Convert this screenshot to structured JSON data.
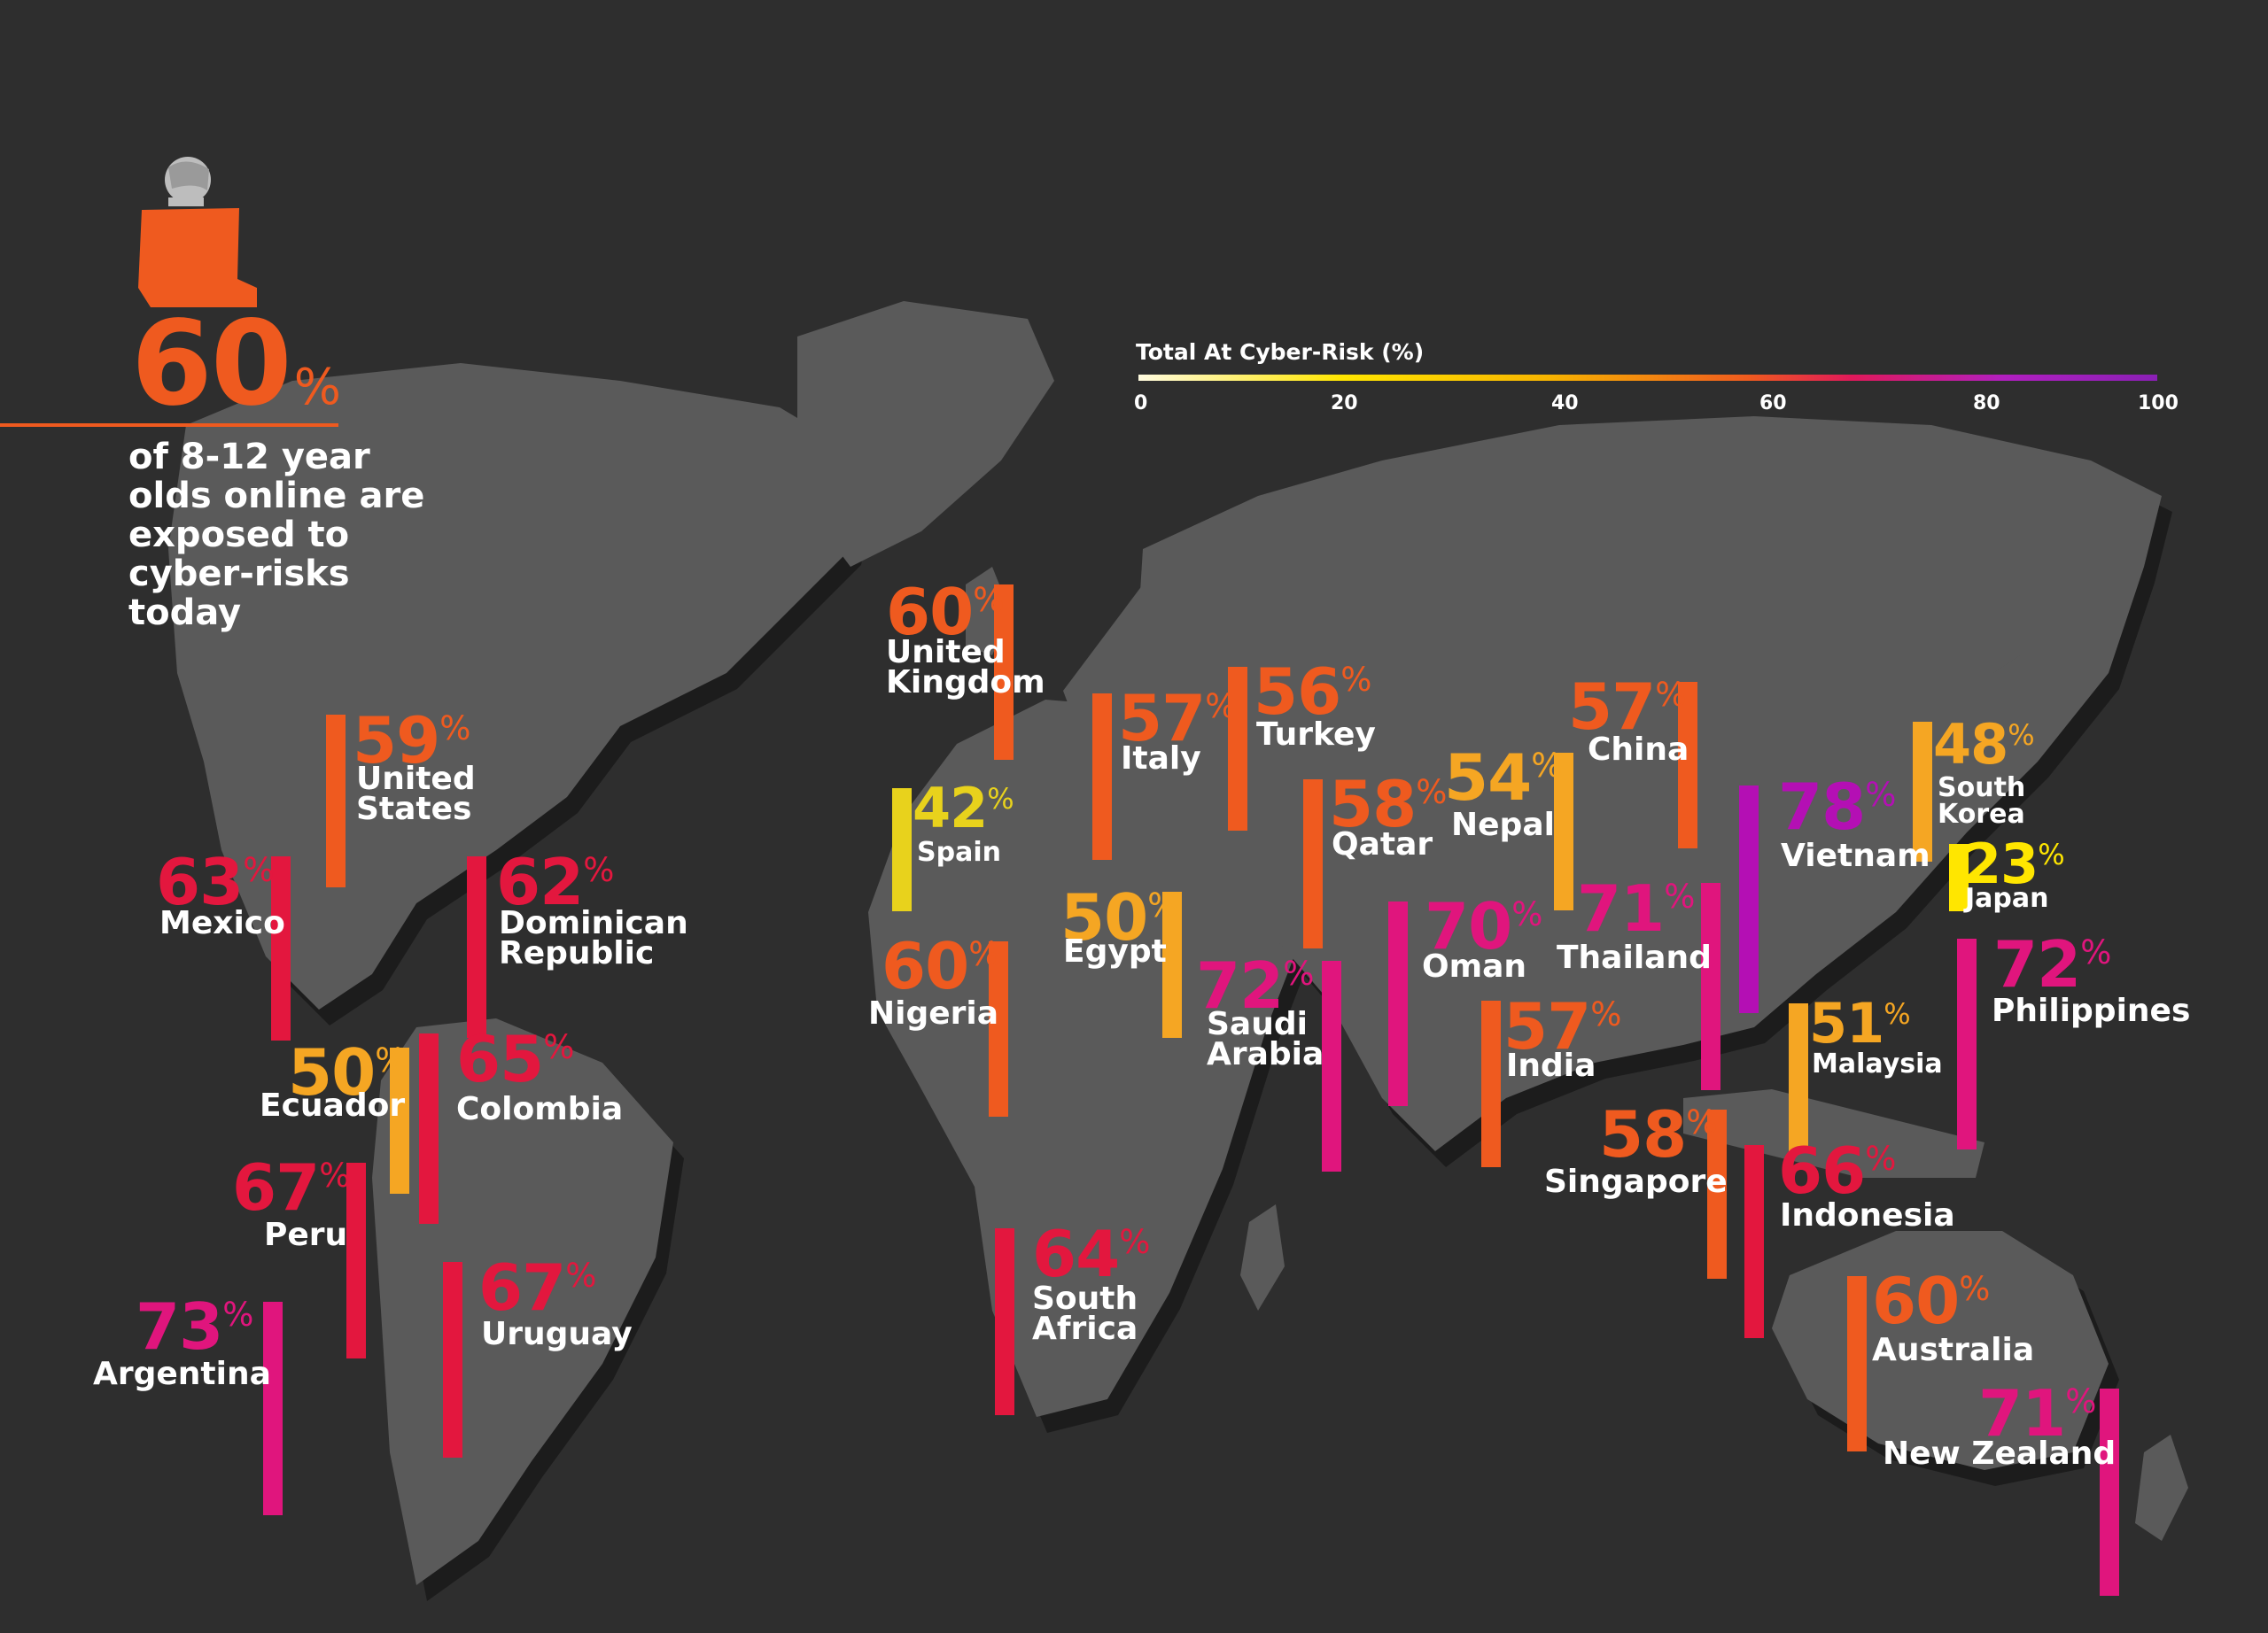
{
  "headline": {
    "value": "60",
    "unit": "%",
    "text": "of 8-12 year olds online are exposed to cyber-risks today",
    "color": "#ef5a1f"
  },
  "legend": {
    "title": "Total At Cyber-Risk (%)",
    "ticks": [
      "0",
      "20",
      "40",
      "60",
      "80",
      "100"
    ]
  },
  "chart_data": {
    "type": "bar",
    "title": "",
    "unit": "%",
    "scale_range": [
      0,
      100
    ],
    "colors": {
      "yellow": "#e8d21c",
      "amber": "#f5a623",
      "orange": "#ef5a1f",
      "red": "#e3173e",
      "magenta": "#e0157d",
      "purple": "#b40fb4"
    },
    "countries": [
      {
        "name": "United\nKingdom",
        "value": 60,
        "color": "#ef5a1f"
      },
      {
        "name": "United\nStates",
        "value": 59,
        "color": "#ef5a1f"
      },
      {
        "name": "Mexico",
        "value": 63,
        "color": "#e3173e"
      },
      {
        "name": "Dominican\nRepublic",
        "value": 62,
        "color": "#e3173e"
      },
      {
        "name": "Ecuador",
        "value": 50,
        "color": "#f5a623"
      },
      {
        "name": "Colombia",
        "value": 65,
        "color": "#e3173e"
      },
      {
        "name": "Peru",
        "value": 67,
        "color": "#e3173e"
      },
      {
        "name": "Uruguay",
        "value": 67,
        "color": "#e3173e"
      },
      {
        "name": "Argentina",
        "value": 73,
        "color": "#e0157d"
      },
      {
        "name": "Spain",
        "value": 42,
        "color": "#e8d21c"
      },
      {
        "name": "Italy",
        "value": 57,
        "color": "#ef5a1f"
      },
      {
        "name": "Turkey",
        "value": 56,
        "color": "#ef5a1f"
      },
      {
        "name": "Qatar",
        "value": 58,
        "color": "#ef5a1f"
      },
      {
        "name": "Nepal",
        "value": 54,
        "color": "#f5a623"
      },
      {
        "name": "China",
        "value": 57,
        "color": "#ef5a1f"
      },
      {
        "name": "South\nKorea",
        "value": 48,
        "color": "#f5a623"
      },
      {
        "name": "Japan",
        "value": 23,
        "color": "#ffe600"
      },
      {
        "name": "Vietnam",
        "value": 78,
        "color": "#b40fb4"
      },
      {
        "name": "Egypt",
        "value": 50,
        "color": "#f5a623"
      },
      {
        "name": "Nigeria",
        "value": 60,
        "color": "#ef5a1f"
      },
      {
        "name": "Saudi\nArabia",
        "value": 72,
        "color": "#e0157d"
      },
      {
        "name": "Oman",
        "value": 70,
        "color": "#e0157d"
      },
      {
        "name": "Thailand",
        "value": 71,
        "color": "#e0157d"
      },
      {
        "name": "India",
        "value": 57,
        "color": "#ef5a1f"
      },
      {
        "name": "Malaysia",
        "value": 51,
        "color": "#f5a623"
      },
      {
        "name": "Philippines",
        "value": 72,
        "color": "#e0157d"
      },
      {
        "name": "Singapore",
        "value": 58,
        "color": "#ef5a1f"
      },
      {
        "name": "Indonesia",
        "value": 66,
        "color": "#e3173e"
      },
      {
        "name": "South\nAfrica",
        "value": 64,
        "color": "#e3173e"
      },
      {
        "name": "Australia",
        "value": 60,
        "color": "#ef5a1f"
      },
      {
        "name": "New Zealand",
        "value": 71,
        "color": "#e0157d"
      }
    ]
  }
}
